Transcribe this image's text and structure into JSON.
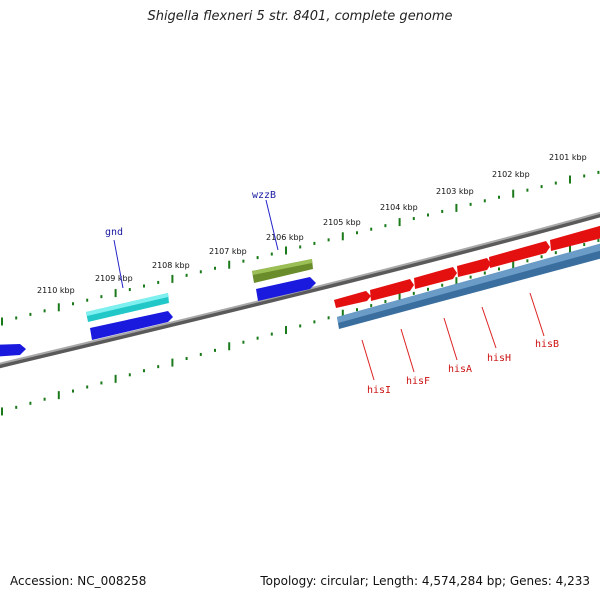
{
  "title": "Shigella flexneri 5 str. 8401, complete genome",
  "footer": {
    "accession": "Accession: NC_008258",
    "summary": "Topology: circular; Length: 4,574,284 bp; Genes: 4,233"
  },
  "kbp_labels": [
    "2101 kbp",
    "2102 kbp",
    "2103 kbp",
    "2104 kbp",
    "2105 kbp",
    "2106 kbp",
    "2107 kbp",
    "2108 kbp",
    "2109 kbp",
    "2110 kbp"
  ],
  "genes_forward": [
    "gnd",
    "wzzB"
  ],
  "genes_reverse": [
    "hisI",
    "hisF",
    "hisA",
    "hisH",
    "hisB"
  ],
  "colors": {
    "backbone": "#808080",
    "tick": "#1a7a1a",
    "cds_blue": "#1a1adf",
    "cds_cyan": "#22c8c8",
    "cds_olive": "#6a8c2a",
    "cds_red": "#ee1111",
    "band_steelblue": "#4a7fb0",
    "label_line_blue": "#2222cc",
    "label_line_red": "#dd2222"
  }
}
